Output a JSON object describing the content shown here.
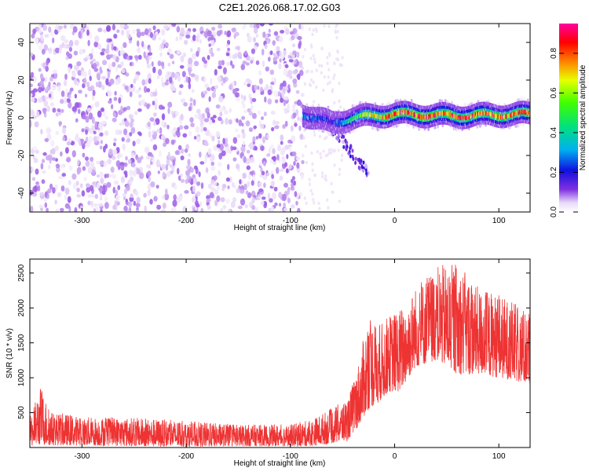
{
  "title": "C2E1.2026.068.17.02.G03",
  "chart_data": [
    {
      "type": "heatmap",
      "title": "C2E1.2026.068.17.02.G03",
      "xlabel": "Height of straight line (km)",
      "ylabel": "Frequency (Hz)",
      "xlim": [
        -350,
        130
      ],
      "ylim": [
        -50,
        50
      ],
      "xticks": [
        -300,
        -200,
        -100,
        0,
        100
      ],
      "xtick_labels": [
        "-300",
        "-200",
        "-100",
        "0",
        "100"
      ],
      "yticks": [
        -40,
        -20,
        0,
        20,
        40
      ],
      "ytick_labels": [
        "-40",
        "-20",
        "0",
        "20",
        "40"
      ],
      "colorbar": {
        "label": "Normalized spectral amplitude",
        "range": [
          0,
          0.95
        ],
        "ticks": [
          0.0,
          0.2,
          0.4,
          0.6,
          0.8
        ],
        "tick_labels": [
          "0.0",
          "0.2",
          "0.4",
          "0.6",
          "0.8"
        ],
        "colormap": "rainbow (white-purple-blue-cyan-green-yellow-red-magenta)"
      },
      "regions": [
        {
          "x_range": [
            -350,
            -88
          ],
          "freq_range": [
            -50,
            50
          ],
          "amplitude": [
            0.02,
            0.1
          ],
          "description": "broadband noise"
        },
        {
          "x_range": [
            -88,
            -50
          ],
          "freq_range": [
            -50,
            50
          ],
          "amplitude": [
            0.0,
            0.03
          ],
          "description": "sparse faint noise"
        },
        {
          "x_range": [
            -88,
            130
          ],
          "center_freq": [
            2,
            -3,
            0,
            2,
            1,
            2
          ],
          "center_x": [
            -88,
            -60,
            -40,
            0,
            60,
            130
          ],
          "peak_amplitude": [
            0.3,
            0.2,
            0.5,
            0.9,
            0.85,
            0.8
          ],
          "description": "carrier line"
        },
        {
          "x_range": [
            -60,
            -25
          ],
          "freq_range": [
            -30,
            -5
          ],
          "amplitude": [
            0.05,
            0.2
          ],
          "description": "descending tail"
        }
      ],
      "grid": false,
      "legend": "none"
    },
    {
      "type": "line",
      "xlabel": "Height of straight line (km)",
      "ylabel": "SNR (10 * v/v)",
      "xlim": [
        -350,
        130
      ],
      "ylim": [
        0,
        2700
      ],
      "xticks": [
        -300,
        -200,
        -100,
        0,
        100
      ],
      "xtick_labels": [
        "-300",
        "-200",
        "-100",
        "0",
        "100"
      ],
      "yticks": [
        500,
        1000,
        1500,
        2000,
        2500
      ],
      "ytick_labels": [
        "500",
        "1000",
        "1500",
        "2000",
        "2500"
      ],
      "color": "#ee3333",
      "envelope": {
        "x": [
          -350,
          -340,
          -330,
          -300,
          -250,
          -200,
          -150,
          -100,
          -80,
          -60,
          -45,
          -35,
          -25,
          -15,
          -5,
          5,
          20,
          40,
          60,
          80,
          100,
          130
        ],
        "low": [
          20,
          40,
          30,
          30,
          20,
          10,
          20,
          20,
          20,
          60,
          100,
          300,
          550,
          650,
          800,
          800,
          1150,
          1250,
          1050,
          1050,
          1000,
          900
        ],
        "high": [
          430,
          880,
          520,
          440,
          430,
          380,
          330,
          330,
          400,
          570,
          700,
          1200,
          1900,
          1750,
          1900,
          2000,
          2300,
          2600,
          2650,
          2300,
          2200,
          1950
        ]
      },
      "grid": false,
      "legend": "none"
    }
  ]
}
